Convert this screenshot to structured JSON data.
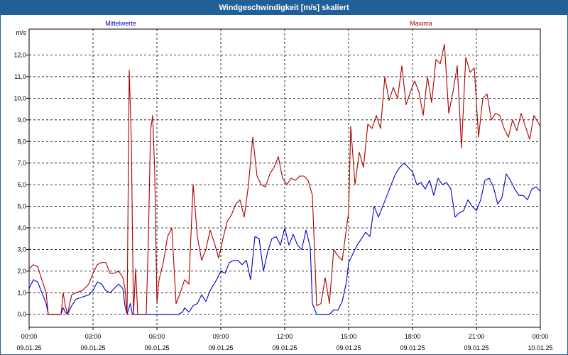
{
  "window": {
    "title": "Windgeschwindigkeit [m/s] skaliert"
  },
  "chart_data": {
    "type": "line",
    "title": "Windgeschwindigkeit [m/s] skaliert",
    "ylabel": "m/s",
    "xlabel": "",
    "ylim": [
      -0.6,
      13.2
    ],
    "yticks": [
      0,
      1,
      2,
      3,
      4,
      5,
      6,
      7,
      8,
      9,
      10,
      11,
      12
    ],
    "ytick_labels": [
      "0,0",
      "1,0",
      "2,0",
      "3,0",
      "4,0",
      "5,0",
      "6,0",
      "7,0",
      "8,0",
      "9,0",
      "10,0",
      "11,0",
      "12,0"
    ],
    "xlim": [
      0,
      24
    ],
    "xticks": [
      {
        "x": 0,
        "time": "00:00",
        "date": "09.01.25"
      },
      {
        "x": 3,
        "time": "03:00",
        "date": "09.01.25"
      },
      {
        "x": 6,
        "time": "06:00",
        "date": "09.01.25"
      },
      {
        "x": 9,
        "time": "09:00",
        "date": "09.01.25"
      },
      {
        "x": 12,
        "time": "12:00",
        "date": "09.01.25"
      },
      {
        "x": 15,
        "time": "15:00",
        "date": "09.01.25"
      },
      {
        "x": 18,
        "time": "18:00",
        "date": "09.01.25"
      },
      {
        "x": 21,
        "time": "21:00",
        "date": "09.01.25"
      },
      {
        "x": 24,
        "time": "00:00",
        "date": "10.01.25"
      }
    ],
    "grid": true,
    "legend_placement": "top",
    "series": [
      {
        "name": "Mittelwerte",
        "color": "#0000cc",
        "points": [
          [
            0,
            1.2
          ],
          [
            0.2,
            1.6
          ],
          [
            0.4,
            1.5
          ],
          [
            0.6,
            1.0
          ],
          [
            0.8,
            0.5
          ],
          [
            0.9,
            0
          ],
          [
            1.2,
            0
          ],
          [
            1.5,
            0
          ],
          [
            1.6,
            0.3
          ],
          [
            1.7,
            0.1
          ],
          [
            1.8,
            0
          ],
          [
            2.0,
            0.4
          ],
          [
            2.2,
            0.7
          ],
          [
            2.5,
            0.8
          ],
          [
            2.8,
            0.9
          ],
          [
            3.0,
            1.1
          ],
          [
            3.2,
            1.5
          ],
          [
            3.4,
            1.4
          ],
          [
            3.6,
            1.1
          ],
          [
            3.8,
            1.0
          ],
          [
            4.0,
            1.2
          ],
          [
            4.2,
            1.4
          ],
          [
            4.4,
            1.2
          ],
          [
            4.5,
            0.4
          ],
          [
            4.6,
            0
          ],
          [
            4.75,
            0.5
          ],
          [
            4.85,
            0
          ],
          [
            5.0,
            0
          ],
          [
            5.2,
            0
          ],
          [
            5.5,
            0
          ],
          [
            5.8,
            0
          ],
          [
            6.0,
            0
          ],
          [
            6.2,
            0
          ],
          [
            6.5,
            0
          ],
          [
            6.8,
            0
          ],
          [
            7.0,
            0
          ],
          [
            7.2,
            0.1
          ],
          [
            7.3,
            0.3
          ],
          [
            7.5,
            0.1
          ],
          [
            7.7,
            0.4
          ],
          [
            7.9,
            0.5
          ],
          [
            8.1,
            0.9
          ],
          [
            8.3,
            0.6
          ],
          [
            8.5,
            1.1
          ],
          [
            8.8,
            1.6
          ],
          [
            9.0,
            2.0
          ],
          [
            9.2,
            1.9
          ],
          [
            9.4,
            2.4
          ],
          [
            9.6,
            2.5
          ],
          [
            9.8,
            2.5
          ],
          [
            10.0,
            2.3
          ],
          [
            10.2,
            2.5
          ],
          [
            10.4,
            1.6
          ],
          [
            10.6,
            3.6
          ],
          [
            10.8,
            3.5
          ],
          [
            11.0,
            2.0
          ],
          [
            11.2,
            2.9
          ],
          [
            11.4,
            3.5
          ],
          [
            11.6,
            3.6
          ],
          [
            11.8,
            3.2
          ],
          [
            12.0,
            4.0
          ],
          [
            12.2,
            3.2
          ],
          [
            12.4,
            3.7
          ],
          [
            12.6,
            3.2
          ],
          [
            12.8,
            3.0
          ],
          [
            13.0,
            3.9
          ],
          [
            13.2,
            3.1
          ],
          [
            13.3,
            0.5
          ],
          [
            13.5,
            0
          ],
          [
            13.8,
            0
          ],
          [
            14.1,
            0
          ],
          [
            14.3,
            0.2
          ],
          [
            14.5,
            0.2
          ],
          [
            14.7,
            0.6
          ],
          [
            14.9,
            1.5
          ],
          [
            15.0,
            2.4
          ],
          [
            15.2,
            2.8
          ],
          [
            15.4,
            3.2
          ],
          [
            15.6,
            3.5
          ],
          [
            15.8,
            3.8
          ],
          [
            16.0,
            3.6
          ],
          [
            16.2,
            5.0
          ],
          [
            16.4,
            4.5
          ],
          [
            16.6,
            5.0
          ],
          [
            16.8,
            5.5
          ],
          [
            17.0,
            6.0
          ],
          [
            17.2,
            6.5
          ],
          [
            17.4,
            6.8
          ],
          [
            17.6,
            7.0
          ],
          [
            17.8,
            6.8
          ],
          [
            18.0,
            6.6
          ],
          [
            18.2,
            6.0
          ],
          [
            18.4,
            6.1
          ],
          [
            18.6,
            5.8
          ],
          [
            18.8,
            6.2
          ],
          [
            19.0,
            5.5
          ],
          [
            19.2,
            6.3
          ],
          [
            19.4,
            6.0
          ],
          [
            19.6,
            6.1
          ],
          [
            19.8,
            5.8
          ],
          [
            20.0,
            4.5
          ],
          [
            20.2,
            4.7
          ],
          [
            20.4,
            4.8
          ],
          [
            20.6,
            5.3
          ],
          [
            20.8,
            5.0
          ],
          [
            21.0,
            4.8
          ],
          [
            21.2,
            5.3
          ],
          [
            21.4,
            6.2
          ],
          [
            21.6,
            6.3
          ],
          [
            21.8,
            5.9
          ],
          [
            22.0,
            5.1
          ],
          [
            22.2,
            5.4
          ],
          [
            22.4,
            6.5
          ],
          [
            22.6,
            6.2
          ],
          [
            22.8,
            5.8
          ],
          [
            23.0,
            5.5
          ],
          [
            23.2,
            5.5
          ],
          [
            23.4,
            5.3
          ],
          [
            23.6,
            5.8
          ],
          [
            23.8,
            5.9
          ],
          [
            24.0,
            5.7
          ]
        ]
      },
      {
        "name": "Maxima",
        "color": "#aa0000",
        "points": [
          [
            0,
            2.1
          ],
          [
            0.2,
            2.3
          ],
          [
            0.4,
            2.2
          ],
          [
            0.6,
            1.6
          ],
          [
            0.8,
            1.0
          ],
          [
            0.9,
            0
          ],
          [
            1.2,
            0
          ],
          [
            1.5,
            0
          ],
          [
            1.6,
            1.0
          ],
          [
            1.7,
            0.4
          ],
          [
            1.8,
            0
          ],
          [
            2.0,
            0.9
          ],
          [
            2.2,
            1.0
          ],
          [
            2.5,
            1.1
          ],
          [
            2.8,
            1.4
          ],
          [
            3.0,
            1.9
          ],
          [
            3.2,
            2.3
          ],
          [
            3.4,
            2.4
          ],
          [
            3.6,
            2.4
          ],
          [
            3.8,
            1.9
          ],
          [
            4.0,
            1.9
          ],
          [
            4.2,
            2.0
          ],
          [
            4.4,
            1.7
          ],
          [
            4.5,
            1.2
          ],
          [
            4.6,
            0
          ],
          [
            4.7,
            11.3
          ],
          [
            4.8,
            8.0
          ],
          [
            4.9,
            0
          ],
          [
            5.0,
            2.1
          ],
          [
            5.1,
            0
          ],
          [
            5.3,
            0
          ],
          [
            5.5,
            0
          ],
          [
            5.6,
            3.5
          ],
          [
            5.7,
            8.5
          ],
          [
            5.8,
            9.2
          ],
          [
            5.9,
            6.5
          ],
          [
            6.0,
            0.5
          ],
          [
            6.1,
            1.6
          ],
          [
            6.3,
            2.4
          ],
          [
            6.5,
            3.6
          ],
          [
            6.7,
            4.0
          ],
          [
            6.9,
            0.5
          ],
          [
            7.1,
            1.0
          ],
          [
            7.3,
            1.6
          ],
          [
            7.5,
            1.4
          ],
          [
            7.7,
            6.0
          ],
          [
            7.9,
            3.6
          ],
          [
            8.1,
            2.5
          ],
          [
            8.3,
            3.0
          ],
          [
            8.5,
            3.9
          ],
          [
            8.7,
            3.3
          ],
          [
            8.9,
            2.6
          ],
          [
            9.1,
            3.5
          ],
          [
            9.3,
            4.3
          ],
          [
            9.5,
            4.6
          ],
          [
            9.7,
            5.1
          ],
          [
            9.9,
            5.3
          ],
          [
            10.1,
            4.5
          ],
          [
            10.3,
            6.0
          ],
          [
            10.5,
            8.2
          ],
          [
            10.7,
            6.4
          ],
          [
            10.9,
            6.0
          ],
          [
            11.1,
            5.9
          ],
          [
            11.3,
            6.5
          ],
          [
            11.5,
            6.8
          ],
          [
            11.7,
            7.3
          ],
          [
            11.9,
            6.3
          ],
          [
            12.1,
            6.0
          ],
          [
            12.3,
            6.3
          ],
          [
            12.5,
            6.2
          ],
          [
            12.7,
            6.4
          ],
          [
            12.9,
            6.4
          ],
          [
            13.1,
            6.2
          ],
          [
            13.3,
            5.5
          ],
          [
            13.5,
            0.4
          ],
          [
            13.7,
            0.5
          ],
          [
            13.9,
            1.7
          ],
          [
            14.1,
            0.5
          ],
          [
            14.3,
            3.0
          ],
          [
            14.5,
            2.7
          ],
          [
            14.7,
            2.5
          ],
          [
            14.9,
            4.0
          ],
          [
            15.0,
            4.7
          ],
          [
            15.1,
            8.7
          ],
          [
            15.3,
            6.0
          ],
          [
            15.5,
            7.5
          ],
          [
            15.7,
            6.8
          ],
          [
            15.9,
            8.8
          ],
          [
            16.1,
            8.6
          ],
          [
            16.3,
            9.2
          ],
          [
            16.5,
            8.6
          ],
          [
            16.7,
            11.0
          ],
          [
            16.9,
            9.9
          ],
          [
            17.1,
            10.5
          ],
          [
            17.3,
            10.0
          ],
          [
            17.5,
            11.5
          ],
          [
            17.7,
            9.7
          ],
          [
            17.9,
            10.3
          ],
          [
            18.1,
            10.8
          ],
          [
            18.3,
            10.3
          ],
          [
            18.5,
            9.2
          ],
          [
            18.7,
            11.0
          ],
          [
            18.9,
            9.8
          ],
          [
            19.1,
            11.8
          ],
          [
            19.3,
            11.6
          ],
          [
            19.5,
            12.5
          ],
          [
            19.7,
            9.3
          ],
          [
            19.9,
            10.3
          ],
          [
            20.1,
            11.5
          ],
          [
            20.3,
            7.7
          ],
          [
            20.5,
            11.9
          ],
          [
            20.7,
            11.2
          ],
          [
            20.9,
            11.4
          ],
          [
            21.1,
            8.2
          ],
          [
            21.3,
            10.0
          ],
          [
            21.5,
            10.2
          ],
          [
            21.7,
            9.0
          ],
          [
            21.9,
            9.3
          ],
          [
            22.1,
            9.2
          ],
          [
            22.3,
            8.6
          ],
          [
            22.5,
            8.2
          ],
          [
            22.7,
            9.0
          ],
          [
            22.9,
            8.5
          ],
          [
            23.1,
            9.3
          ],
          [
            23.3,
            8.7
          ],
          [
            23.5,
            8.1
          ],
          [
            23.7,
            9.2
          ],
          [
            24.0,
            8.7
          ]
        ]
      }
    ]
  }
}
